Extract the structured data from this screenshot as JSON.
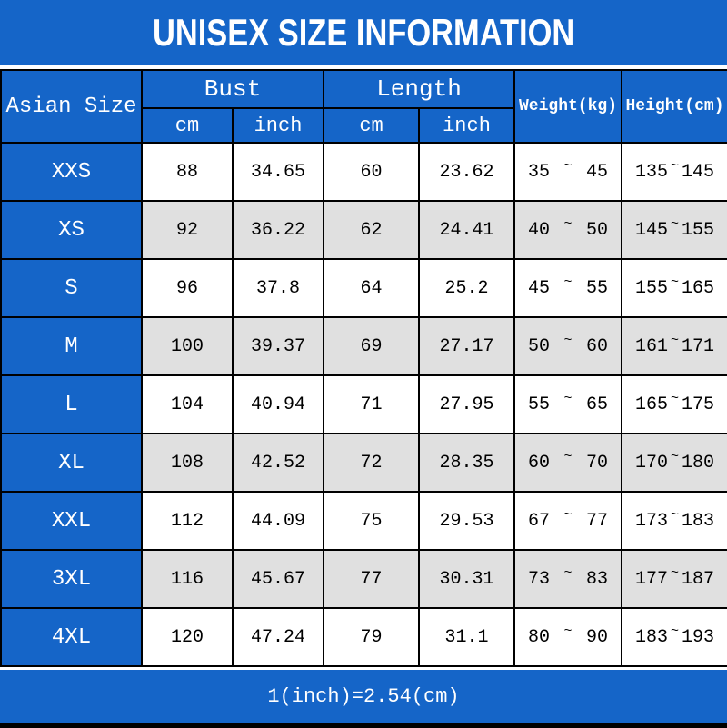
{
  "title": "UNISEX SIZE INFORMATION",
  "colors": {
    "blue": "#1565c8",
    "alt_row": "#e0e0e0"
  },
  "chart_data": {
    "type": "table",
    "title": "UNISEX SIZE INFORMATION",
    "corner_label": "Asian Size",
    "column_groups": [
      {
        "label": "Bust",
        "sub": [
          "cm",
          "inch"
        ]
      },
      {
        "label": "Length",
        "sub": [
          "cm",
          "inch"
        ]
      }
    ],
    "single_columns": [
      "Weight(kg)",
      "Height(cm)"
    ],
    "tilde": "~",
    "rows": [
      {
        "size": "XXS",
        "bust_cm": "88",
        "bust_inch": "34.65",
        "length_cm": "60",
        "length_inch": "23.62",
        "weight_min": "35",
        "weight_max": "45",
        "height_min": "135",
        "height_max": "145"
      },
      {
        "size": "XS",
        "bust_cm": "92",
        "bust_inch": "36.22",
        "length_cm": "62",
        "length_inch": "24.41",
        "weight_min": "40",
        "weight_max": "50",
        "height_min": "145",
        "height_max": "155"
      },
      {
        "size": "S",
        "bust_cm": "96",
        "bust_inch": "37.8",
        "length_cm": "64",
        "length_inch": "25.2",
        "weight_min": "45",
        "weight_max": "55",
        "height_min": "155",
        "height_max": "165"
      },
      {
        "size": "M",
        "bust_cm": "100",
        "bust_inch": "39.37",
        "length_cm": "69",
        "length_inch": "27.17",
        "weight_min": "50",
        "weight_max": "60",
        "height_min": "161",
        "height_max": "171"
      },
      {
        "size": "L",
        "bust_cm": "104",
        "bust_inch": "40.94",
        "length_cm": "71",
        "length_inch": "27.95",
        "weight_min": "55",
        "weight_max": "65",
        "height_min": "165",
        "height_max": "175"
      },
      {
        "size": "XL",
        "bust_cm": "108",
        "bust_inch": "42.52",
        "length_cm": "72",
        "length_inch": "28.35",
        "weight_min": "60",
        "weight_max": "70",
        "height_min": "170",
        "height_max": "180"
      },
      {
        "size": "XXL",
        "bust_cm": "112",
        "bust_inch": "44.09",
        "length_cm": "75",
        "length_inch": "29.53",
        "weight_min": "67",
        "weight_max": "77",
        "height_min": "173",
        "height_max": "183"
      },
      {
        "size": "3XL",
        "bust_cm": "116",
        "bust_inch": "45.67",
        "length_cm": "77",
        "length_inch": "30.31",
        "weight_min": "73",
        "weight_max": "83",
        "height_min": "177",
        "height_max": "187"
      },
      {
        "size": "4XL",
        "bust_cm": "120",
        "bust_inch": "47.24",
        "length_cm": "79",
        "length_inch": "31.1",
        "weight_min": "80",
        "weight_max": "90",
        "height_min": "183",
        "height_max": "193"
      }
    ],
    "note": "1(inch)=2.54(cm)"
  }
}
